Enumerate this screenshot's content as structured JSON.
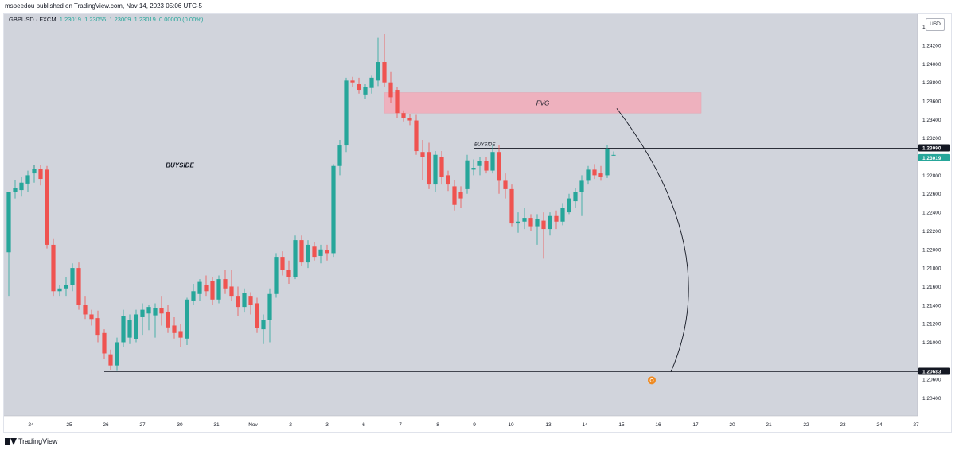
{
  "header": {
    "published": "mspeedou published on TradingView.com, Nov 14, 2023 05:06 UTC-5"
  },
  "legend": {
    "symbol": "GBPUSD · FXCM",
    "o": "1.23019",
    "h": "1.23056",
    "l": "1.23009",
    "c": "1.23019",
    "change": "0.00000 (0.00%)"
  },
  "currency": "USD",
  "footer": {
    "brand": "TradingView"
  },
  "colors": {
    "up": "#26a69a",
    "down": "#ef5350",
    "fvg_fill": "#f7a6b4",
    "background": "#d1d4dc"
  },
  "chart_data": {
    "type": "candlestick",
    "ylim": [
      1.2025,
      1.245
    ],
    "y_ticks": [
      "1.20400",
      "1.20600",
      "1.21000",
      "1.21200",
      "1.21400",
      "1.21600",
      "1.21800",
      "1.22000",
      "1.22200",
      "1.22400",
      "1.22600",
      "1.22800",
      "1.23200",
      "1.23400",
      "1.23600",
      "1.23800",
      "1.24000",
      "1.24200",
      "1.24400"
    ],
    "x_ticks": [
      "24",
      "25",
      "26",
      "27",
      "30",
      "31",
      "Nov",
      "2",
      "3",
      "6",
      "7",
      "8",
      "9",
      "10",
      "13",
      "14",
      "15",
      "16",
      "17",
      "20",
      "21",
      "22",
      "23",
      "24",
      "27"
    ],
    "price_labels": [
      {
        "value": 1.2309,
        "text": "1.23090",
        "style": "dark"
      },
      {
        "value": 1.23019,
        "text": "1.23019",
        "style": "green"
      },
      {
        "value": 1.20683,
        "text": "1.20683",
        "style": "dark"
      }
    ],
    "annotations": {
      "buyside_left": {
        "label": "BUYSIDE",
        "level": 1.2291
      },
      "buyside_right": {
        "label": "BUYSIDE",
        "level": 1.2309
      },
      "fvg": {
        "label": "FVG",
        "top": 1.2369,
        "bottom": 1.2347
      },
      "sell_side_level": 1.20683
    },
    "candles": [
      {
        "o": 1.2197,
        "h": 1.2262,
        "l": 1.215,
        "c": 1.2262
      },
      {
        "o": 1.2262,
        "h": 1.2275,
        "l": 1.2255,
        "c": 1.2266
      },
      {
        "o": 1.2264,
        "h": 1.2278,
        "l": 1.2257,
        "c": 1.2272
      },
      {
        "o": 1.2271,
        "h": 1.2285,
        "l": 1.2262,
        "c": 1.228
      },
      {
        "o": 1.2282,
        "h": 1.2291,
        "l": 1.2272,
        "c": 1.2287
      },
      {
        "o": 1.2287,
        "h": 1.2291,
        "l": 1.2269,
        "c": 1.2276
      },
      {
        "o": 1.2286,
        "h": 1.229,
        "l": 1.2201,
        "c": 1.2205
      },
      {
        "o": 1.2205,
        "h": 1.2212,
        "l": 1.215,
        "c": 1.2155
      },
      {
        "o": 1.2155,
        "h": 1.2162,
        "l": 1.215,
        "c": 1.2158
      },
      {
        "o": 1.2158,
        "h": 1.217,
        "l": 1.215,
        "c": 1.2162
      },
      {
        "o": 1.2162,
        "h": 1.2185,
        "l": 1.2155,
        "c": 1.218
      },
      {
        "o": 1.218,
        "h": 1.2186,
        "l": 1.2135,
        "c": 1.214
      },
      {
        "o": 1.214,
        "h": 1.215,
        "l": 1.2125,
        "c": 1.213
      },
      {
        "o": 1.213,
        "h": 1.2135,
        "l": 1.2118,
        "c": 1.2125
      },
      {
        "o": 1.2126,
        "h": 1.2134,
        "l": 1.21,
        "c": 1.2108
      },
      {
        "o": 1.211,
        "h": 1.2114,
        "l": 1.2082,
        "c": 1.2088
      },
      {
        "o": 1.2087,
        "h": 1.2092,
        "l": 1.207,
        "c": 1.2075
      },
      {
        "o": 1.2075,
        "h": 1.2105,
        "l": 1.2069,
        "c": 1.21
      },
      {
        "o": 1.21,
        "h": 1.2135,
        "l": 1.2095,
        "c": 1.2128
      },
      {
        "o": 1.2105,
        "h": 1.213,
        "l": 1.2098,
        "c": 1.2124
      },
      {
        "o": 1.2103,
        "h": 1.2135,
        "l": 1.21,
        "c": 1.213
      },
      {
        "o": 1.2127,
        "h": 1.2142,
        "l": 1.2108,
        "c": 1.2135
      },
      {
        "o": 1.2131,
        "h": 1.214,
        "l": 1.2113,
        "c": 1.2138
      },
      {
        "o": 1.2129,
        "h": 1.2142,
        "l": 1.2105,
        "c": 1.2137
      },
      {
        "o": 1.2137,
        "h": 1.215,
        "l": 1.2118,
        "c": 1.2131
      },
      {
        "o": 1.2133,
        "h": 1.214,
        "l": 1.211,
        "c": 1.2116
      },
      {
        "o": 1.2118,
        "h": 1.2127,
        "l": 1.2104,
        "c": 1.211
      },
      {
        "o": 1.2112,
        "h": 1.212,
        "l": 1.2095,
        "c": 1.2105
      },
      {
        "o": 1.2104,
        "h": 1.2148,
        "l": 1.2097,
        "c": 1.2146
      },
      {
        "o": 1.2145,
        "h": 1.2163,
        "l": 1.214,
        "c": 1.2155
      },
      {
        "o": 1.2152,
        "h": 1.2168,
        "l": 1.2145,
        "c": 1.2165
      },
      {
        "o": 1.2162,
        "h": 1.2172,
        "l": 1.215,
        "c": 1.2155
      },
      {
        "o": 1.2166,
        "h": 1.217,
        "l": 1.214,
        "c": 1.2146
      },
      {
        "o": 1.2146,
        "h": 1.2172,
        "l": 1.2142,
        "c": 1.2168
      },
      {
        "o": 1.2168,
        "h": 1.2178,
        "l": 1.2152,
        "c": 1.2158
      },
      {
        "o": 1.216,
        "h": 1.2178,
        "l": 1.2145,
        "c": 1.215
      },
      {
        "o": 1.215,
        "h": 1.216,
        "l": 1.2128,
        "c": 1.2138
      },
      {
        "o": 1.2138,
        "h": 1.2158,
        "l": 1.2132,
        "c": 1.2153
      },
      {
        "o": 1.215,
        "h": 1.2154,
        "l": 1.213,
        "c": 1.214
      },
      {
        "o": 1.2142,
        "h": 1.2148,
        "l": 1.211,
        "c": 1.2115
      },
      {
        "o": 1.2114,
        "h": 1.213,
        "l": 1.2098,
        "c": 1.2124
      },
      {
        "o": 1.2124,
        "h": 1.2158,
        "l": 1.21,
        "c": 1.2152
      },
      {
        "o": 1.2152,
        "h": 1.2196,
        "l": 1.2148,
        "c": 1.2192
      },
      {
        "o": 1.2192,
        "h": 1.2198,
        "l": 1.2172,
        "c": 1.2178
      },
      {
        "o": 1.2178,
        "h": 1.2188,
        "l": 1.2163,
        "c": 1.217
      },
      {
        "o": 1.217,
        "h": 1.2215,
        "l": 1.2168,
        "c": 1.221
      },
      {
        "o": 1.221,
        "h": 1.2215,
        "l": 1.2182,
        "c": 1.2186
      },
      {
        "o": 1.2186,
        "h": 1.221,
        "l": 1.218,
        "c": 1.2205
      },
      {
        "o": 1.2203,
        "h": 1.2208,
        "l": 1.2188,
        "c": 1.2192
      },
      {
        "o": 1.2193,
        "h": 1.2205,
        "l": 1.2185,
        "c": 1.22
      },
      {
        "o": 1.2199,
        "h": 1.2205,
        "l": 1.2188,
        "c": 1.2196
      },
      {
        "o": 1.2196,
        "h": 1.2292,
        "l": 1.2192,
        "c": 1.229
      },
      {
        "o": 1.229,
        "h": 1.2318,
        "l": 1.228,
        "c": 1.2312
      },
      {
        "o": 1.2312,
        "h": 1.2385,
        "l": 1.2305,
        "c": 1.2382
      },
      {
        "o": 1.2382,
        "h": 1.2386,
        "l": 1.2375,
        "c": 1.238
      },
      {
        "o": 1.2378,
        "h": 1.2385,
        "l": 1.2368,
        "c": 1.2372
      },
      {
        "o": 1.2367,
        "h": 1.2378,
        "l": 1.2362,
        "c": 1.2375
      },
      {
        "o": 1.2374,
        "h": 1.2388,
        "l": 1.2368,
        "c": 1.2385
      },
      {
        "o": 1.2382,
        "h": 1.2428,
        "l": 1.2376,
        "c": 1.2402
      },
      {
        "o": 1.2402,
        "h": 1.2432,
        "l": 1.2375,
        "c": 1.238
      },
      {
        "o": 1.238,
        "h": 1.2392,
        "l": 1.2358,
        "c": 1.2364
      },
      {
        "o": 1.2372,
        "h": 1.2375,
        "l": 1.2342,
        "c": 1.2347
      },
      {
        "o": 1.2347,
        "h": 1.235,
        "l": 1.2338,
        "c": 1.2342
      },
      {
        "o": 1.2342,
        "h": 1.2346,
        "l": 1.2334,
        "c": 1.2339
      },
      {
        "o": 1.2339,
        "h": 1.2345,
        "l": 1.2302,
        "c": 1.2306
      },
      {
        "o": 1.2305,
        "h": 1.2318,
        "l": 1.2275,
        "c": 1.23
      },
      {
        "o": 1.2305,
        "h": 1.2315,
        "l": 1.2265,
        "c": 1.227
      },
      {
        "o": 1.227,
        "h": 1.2306,
        "l": 1.2262,
        "c": 1.2302
      },
      {
        "o": 1.23,
        "h": 1.2306,
        "l": 1.227,
        "c": 1.2278
      },
      {
        "o": 1.228,
        "h": 1.2285,
        "l": 1.2263,
        "c": 1.227
      },
      {
        "o": 1.2268,
        "h": 1.2275,
        "l": 1.2242,
        "c": 1.2248
      },
      {
        "o": 1.2262,
        "h": 1.2268,
        "l": 1.2245,
        "c": 1.2255
      },
      {
        "o": 1.2265,
        "h": 1.2302,
        "l": 1.226,
        "c": 1.2296
      },
      {
        "o": 1.2286,
        "h": 1.2297,
        "l": 1.228,
        "c": 1.2288
      },
      {
        "o": 1.229,
        "h": 1.23,
        "l": 1.228,
        "c": 1.2295
      },
      {
        "o": 1.2295,
        "h": 1.23,
        "l": 1.2282,
        "c": 1.2285
      },
      {
        "o": 1.2285,
        "h": 1.2312,
        "l": 1.2282,
        "c": 1.2305
      },
      {
        "o": 1.2305,
        "h": 1.2312,
        "l": 1.226,
        "c": 1.2274
      },
      {
        "o": 1.2274,
        "h": 1.2282,
        "l": 1.2255,
        "c": 1.2265
      },
      {
        "o": 1.2265,
        "h": 1.227,
        "l": 1.2225,
        "c": 1.2228
      },
      {
        "o": 1.2228,
        "h": 1.224,
        "l": 1.2218,
        "c": 1.223
      },
      {
        "o": 1.223,
        "h": 1.2245,
        "l": 1.2222,
        "c": 1.2234
      },
      {
        "o": 1.2234,
        "h": 1.2238,
        "l": 1.222,
        "c": 1.2225
      },
      {
        "o": 1.2225,
        "h": 1.2238,
        "l": 1.2205,
        "c": 1.2233
      },
      {
        "o": 1.2231,
        "h": 1.224,
        "l": 1.219,
        "c": 1.2222
      },
      {
        "o": 1.2222,
        "h": 1.224,
        "l": 1.2215,
        "c": 1.2236
      },
      {
        "o": 1.2236,
        "h": 1.2242,
        "l": 1.2222,
        "c": 1.223
      },
      {
        "o": 1.223,
        "h": 1.225,
        "l": 1.2226,
        "c": 1.2245
      },
      {
        "o": 1.224,
        "h": 1.226,
        "l": 1.2238,
        "c": 1.2255
      },
      {
        "o": 1.2252,
        "h": 1.2266,
        "l": 1.2245,
        "c": 1.2262
      },
      {
        "o": 1.2262,
        "h": 1.228,
        "l": 1.2236,
        "c": 1.2274
      },
      {
        "o": 1.2274,
        "h": 1.229,
        "l": 1.227,
        "c": 1.2286
      },
      {
        "o": 1.2286,
        "h": 1.2292,
        "l": 1.2276,
        "c": 1.228
      },
      {
        "o": 1.2282,
        "h": 1.229,
        "l": 1.2274,
        "c": 1.2278
      },
      {
        "o": 1.228,
        "h": 1.2312,
        "l": 1.2277,
        "c": 1.2308
      },
      {
        "o": 1.23019,
        "h": 1.23056,
        "l": 1.23009,
        "c": 1.23019
      }
    ]
  }
}
